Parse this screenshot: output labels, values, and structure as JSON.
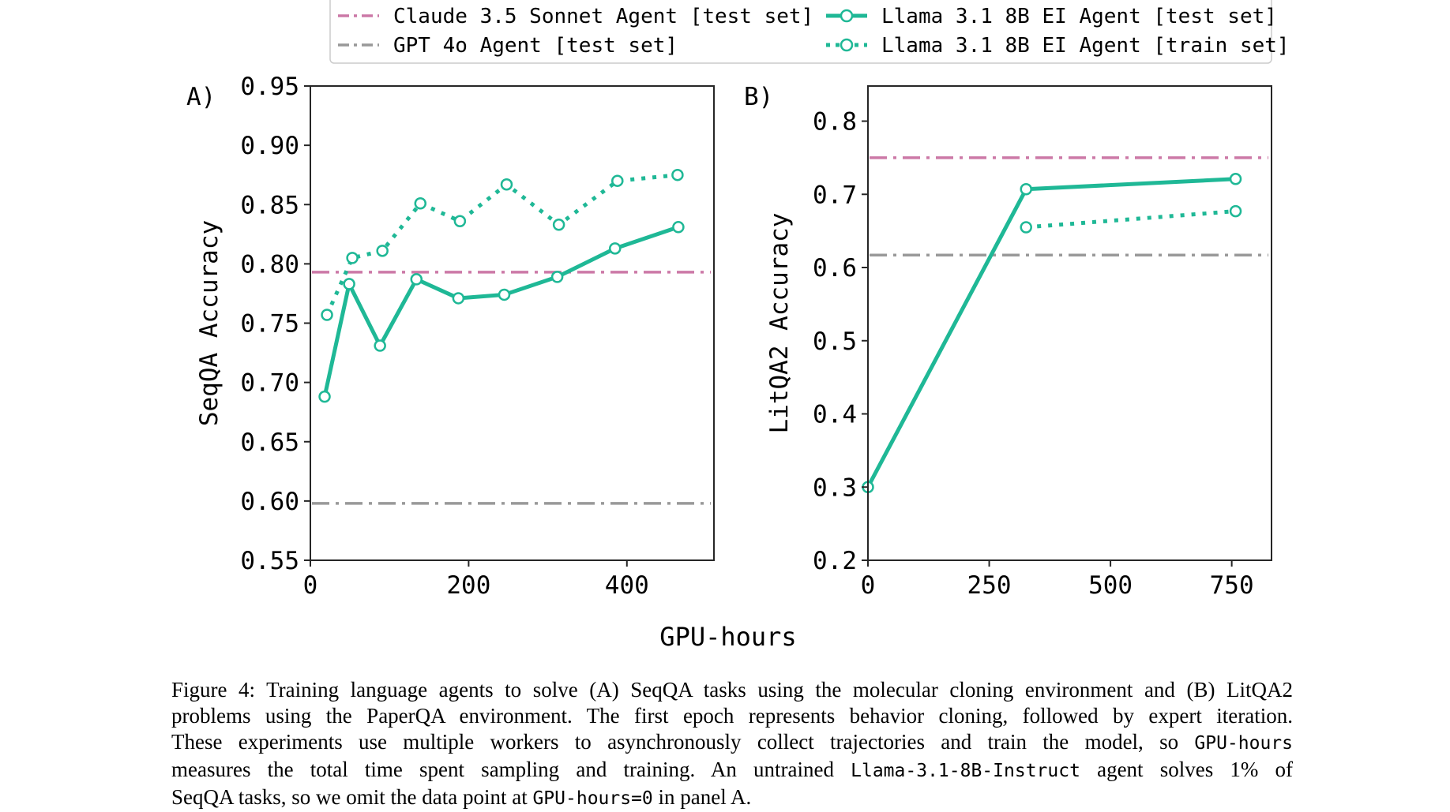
{
  "legend": {
    "items": [
      {
        "label": "Claude 3.5 Sonnet Agent [test set]",
        "style": "dashdot",
        "color": "#cc79a7"
      },
      {
        "label": "GPT 4o Agent [test set]",
        "style": "dashdot",
        "color": "#999999"
      },
      {
        "label": "Llama 3.1 8B EI Agent [test set]",
        "style": "solid-marker",
        "color": "#1fb896"
      },
      {
        "label": "Llama 3.1 8B EI Agent [train set]",
        "style": "dotted-marker",
        "color": "#1fb896"
      }
    ]
  },
  "shared_xlabel": "GPU-hours",
  "chart_data": [
    {
      "type": "line",
      "panel_label": "A)",
      "ylabel": "SeqQA Accuracy",
      "xlim": [
        0,
        510
      ],
      "ylim": [
        0.55,
        0.95
      ],
      "xticks": [
        "0",
        "200",
        "400"
      ],
      "xtick_values": [
        0,
        200,
        400
      ],
      "yticks": [
        "0.55",
        "0.60",
        "0.65",
        "0.70",
        "0.75",
        "0.80",
        "0.85",
        "0.90",
        "0.95"
      ],
      "ytick_values": [
        0.55,
        0.6,
        0.65,
        0.7,
        0.75,
        0.8,
        0.85,
        0.9,
        0.95
      ],
      "hlines": [
        {
          "series": "Claude 3.5 Sonnet Agent [test set]",
          "y": 0.793,
          "color": "#cc79a7"
        },
        {
          "series": "GPT 4o Agent [test set]",
          "y": 0.598,
          "color": "#999999"
        }
      ],
      "series": [
        {
          "name": "Llama 3.1 8B EI Agent [test set]",
          "style": "solid",
          "color": "#1fb896",
          "x": [
            18,
            49,
            88,
            134,
            187,
            245,
            312,
            385,
            465
          ],
          "y": [
            0.688,
            0.783,
            0.731,
            0.787,
            0.771,
            0.774,
            0.789,
            0.813,
            0.831
          ]
        },
        {
          "name": "Llama 3.1 8B EI Agent [train set]",
          "style": "dotted",
          "color": "#1fb896",
          "x": [
            21,
            53,
            91,
            139,
            189,
            248,
            314,
            388,
            464
          ],
          "y": [
            0.757,
            0.805,
            0.811,
            0.851,
            0.836,
            0.867,
            0.833,
            0.87,
            0.875
          ]
        }
      ],
      "grid": false
    },
    {
      "type": "line",
      "panel_label": "B)",
      "ylabel": "LitQA2 Accuracy",
      "xlim": [
        0,
        832
      ],
      "ylim": [
        0.2,
        0.848
      ],
      "xticks": [
        "0",
        "250",
        "500",
        "750"
      ],
      "xtick_values": [
        0,
        250,
        500,
        750
      ],
      "yticks": [
        "0.2",
        "0.3",
        "0.4",
        "0.5",
        "0.6",
        "0.7",
        "0.8"
      ],
      "ytick_values": [
        0.2,
        0.3,
        0.4,
        0.5,
        0.6,
        0.7,
        0.8
      ],
      "hlines": [
        {
          "series": "Claude 3.5 Sonnet Agent [test set]",
          "y": 0.75,
          "color": "#cc79a7"
        },
        {
          "series": "GPT 4o Agent [test set]",
          "y": 0.617,
          "color": "#999999"
        }
      ],
      "series": [
        {
          "name": "Llama 3.1 8B EI Agent [test set]",
          "style": "solid",
          "color": "#1fb896",
          "x": [
            0,
            326,
            758
          ],
          "y": [
            0.3,
            0.707,
            0.721
          ]
        },
        {
          "name": "Llama 3.1 8B EI Agent [train set]",
          "style": "dotted",
          "color": "#1fb896",
          "x": [
            326,
            758
          ],
          "y": [
            0.655,
            0.677
          ]
        }
      ],
      "grid": false
    }
  ],
  "caption": {
    "lines": [
      [
        {
          "t": "Figure 4: Training language agents to solve (A) SeqQA tasks using the molecular cloning environment and (B) LitQA2"
        }
      ],
      [
        {
          "t": "problems using the PaperQA environment. The first epoch represents behavior cloning, followed by expert iteration."
        }
      ],
      [
        {
          "t": "These experiments use multiple workers to asynchronously collect trajectories and train the model, so "
        },
        {
          "t": "GPU-hours",
          "code": true
        }
      ],
      [
        {
          "t": "measures the total time spent sampling and training.  An untrained "
        },
        {
          "t": "Llama-3.1-8B-Instruct",
          "code": true
        },
        {
          "t": " agent solves 1% of"
        }
      ],
      [
        {
          "t": "SeqQA tasks, so we omit the data point at "
        },
        {
          "t": "GPU-hours=0",
          "code": true
        },
        {
          "t": " in panel A."
        }
      ]
    ]
  }
}
